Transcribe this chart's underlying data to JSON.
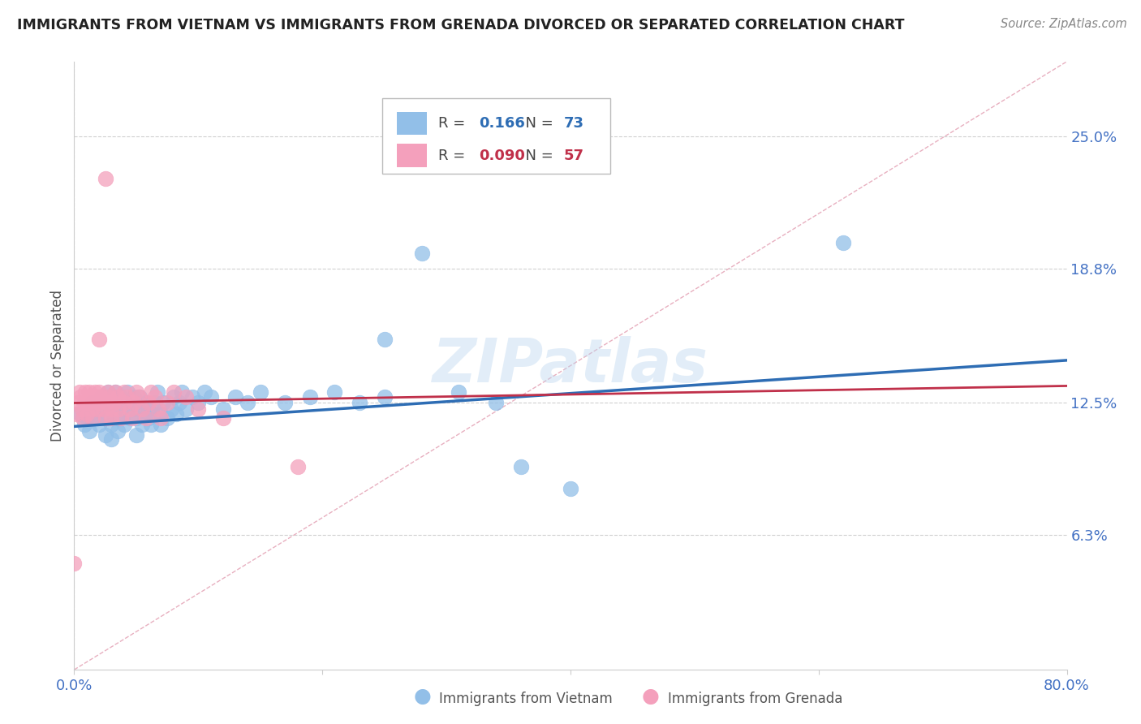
{
  "title": "IMMIGRANTS FROM VIETNAM VS IMMIGRANTS FROM GRENADA DIVORCED OR SEPARATED CORRELATION CHART",
  "source": "Source: ZipAtlas.com",
  "ylabel": "Divorced or Separated",
  "xlim": [
    0.0,
    0.8
  ],
  "ylim": [
    0.0,
    0.285
  ],
  "yticks": [
    0.063,
    0.125,
    0.188,
    0.25
  ],
  "ytick_labels": [
    "6.3%",
    "12.5%",
    "18.8%",
    "25.0%"
  ],
  "xticks": [
    0.0,
    0.2,
    0.4,
    0.6,
    0.8
  ],
  "xtick_labels": [
    "0.0%",
    "",
    "",
    "",
    "80.0%"
  ],
  "series_vietnam": {
    "color": "#92bfe8",
    "R": 0.166,
    "N": 73,
    "label": "Immigrants from Vietnam",
    "line_color": "#2E6DB4",
    "x": [
      0.005,
      0.008,
      0.01,
      0.012,
      0.015,
      0.016,
      0.018,
      0.02,
      0.02,
      0.022,
      0.025,
      0.025,
      0.026,
      0.027,
      0.03,
      0.03,
      0.031,
      0.032,
      0.033,
      0.035,
      0.036,
      0.037,
      0.038,
      0.04,
      0.04,
      0.042,
      0.043,
      0.045,
      0.047,
      0.048,
      0.05,
      0.05,
      0.052,
      0.053,
      0.055,
      0.056,
      0.058,
      0.06,
      0.06,
      0.062,
      0.063,
      0.065,
      0.067,
      0.07,
      0.07,
      0.072,
      0.075,
      0.078,
      0.08,
      0.082,
      0.085,
      0.087,
      0.09,
      0.095,
      0.1,
      0.105,
      0.11,
      0.12,
      0.13,
      0.14,
      0.15,
      0.17,
      0.19,
      0.21,
      0.23,
      0.25,
      0.28,
      0.31,
      0.34,
      0.36,
      0.4,
      0.62,
      0.25
    ],
    "y": [
      0.12,
      0.115,
      0.118,
      0.112,
      0.125,
      0.12,
      0.118,
      0.122,
      0.115,
      0.128,
      0.11,
      0.118,
      0.125,
      0.13,
      0.108,
      0.115,
      0.12,
      0.125,
      0.13,
      0.112,
      0.118,
      0.122,
      0.128,
      0.115,
      0.12,
      0.125,
      0.13,
      0.118,
      0.122,
      0.128,
      0.11,
      0.118,
      0.122,
      0.128,
      0.115,
      0.12,
      0.125,
      0.118,
      0.122,
      0.115,
      0.12,
      0.125,
      0.13,
      0.115,
      0.12,
      0.125,
      0.118,
      0.122,
      0.128,
      0.12,
      0.125,
      0.13,
      0.122,
      0.128,
      0.125,
      0.13,
      0.128,
      0.122,
      0.128,
      0.125,
      0.13,
      0.125,
      0.128,
      0.13,
      0.125,
      0.128,
      0.195,
      0.13,
      0.125,
      0.095,
      0.085,
      0.2,
      0.155
    ]
  },
  "series_grenada": {
    "color": "#f4a0bc",
    "R": 0.09,
    "N": 57,
    "label": "Immigrants from Grenada",
    "line_color": "#c0304a",
    "x": [
      0.0,
      0.002,
      0.003,
      0.004,
      0.005,
      0.006,
      0.007,
      0.008,
      0.009,
      0.01,
      0.01,
      0.012,
      0.013,
      0.014,
      0.015,
      0.016,
      0.017,
      0.018,
      0.019,
      0.02,
      0.02,
      0.022,
      0.023,
      0.025,
      0.026,
      0.027,
      0.028,
      0.03,
      0.03,
      0.032,
      0.033,
      0.035,
      0.036,
      0.038,
      0.04,
      0.04,
      0.042,
      0.045,
      0.047,
      0.048,
      0.05,
      0.052,
      0.055,
      0.058,
      0.06,
      0.062,
      0.065,
      0.068,
      0.07,
      0.075,
      0.08,
      0.09,
      0.1,
      0.12,
      0.18,
      0.02,
      0.025
    ],
    "y": [
      0.05,
      0.12,
      0.125,
      0.13,
      0.128,
      0.122,
      0.118,
      0.125,
      0.13,
      0.12,
      0.125,
      0.13,
      0.128,
      0.122,
      0.118,
      0.125,
      0.13,
      0.128,
      0.122,
      0.125,
      0.13,
      0.128,
      0.122,
      0.118,
      0.125,
      0.13,
      0.128,
      0.122,
      0.118,
      0.125,
      0.13,
      0.128,
      0.122,
      0.118,
      0.125,
      0.13,
      0.128,
      0.122,
      0.118,
      0.125,
      0.13,
      0.128,
      0.122,
      0.118,
      0.125,
      0.13,
      0.128,
      0.122,
      0.118,
      0.125,
      0.13,
      0.128,
      0.122,
      0.118,
      0.095,
      0.155,
      0.23
    ]
  },
  "vietnam_legend_color": "#92bfe8",
  "grenada_legend_color": "#f4a0bc",
  "vietnam_r_color": "#2E6DB4",
  "grenada_r_color": "#c0304a",
  "watermark": "ZIPatlas",
  "background_color": "#ffffff",
  "grid_color": "#d0d0d0",
  "tick_label_color": "#4472C4"
}
